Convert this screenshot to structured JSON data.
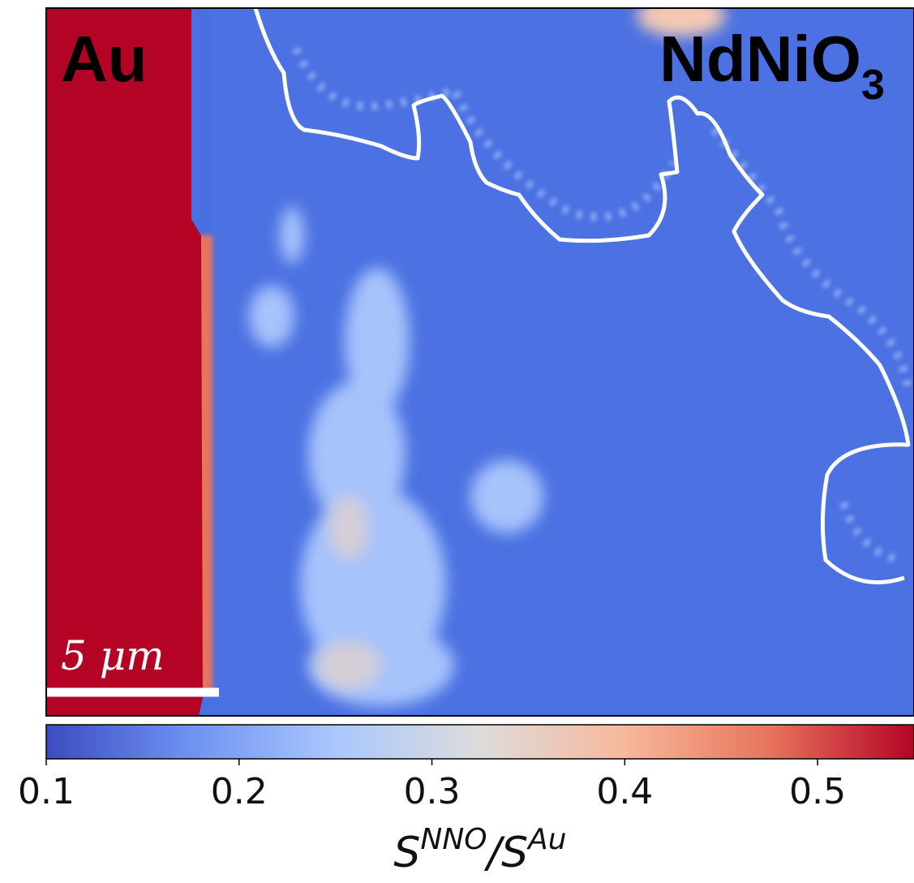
{
  "chart_data": {
    "type": "heatmap",
    "annotations": {
      "left": "Au",
      "right": "NdNiO",
      "right_subscript": "3",
      "scale_bar": "5 μm"
    },
    "colorbar": {
      "clim": [
        0.1,
        0.55
      ],
      "ticks": [
        0.1,
        0.2,
        0.3,
        0.4,
        0.5
      ],
      "label": [
        "S",
        "NNO",
        "/S",
        "Au"
      ],
      "colors": [
        "#3b4cc0",
        "#6f92f3",
        "#aac7fd",
        "#dddcdc",
        "#f7b89c",
        "#e7745b",
        "#b40426"
      ]
    }
  }
}
